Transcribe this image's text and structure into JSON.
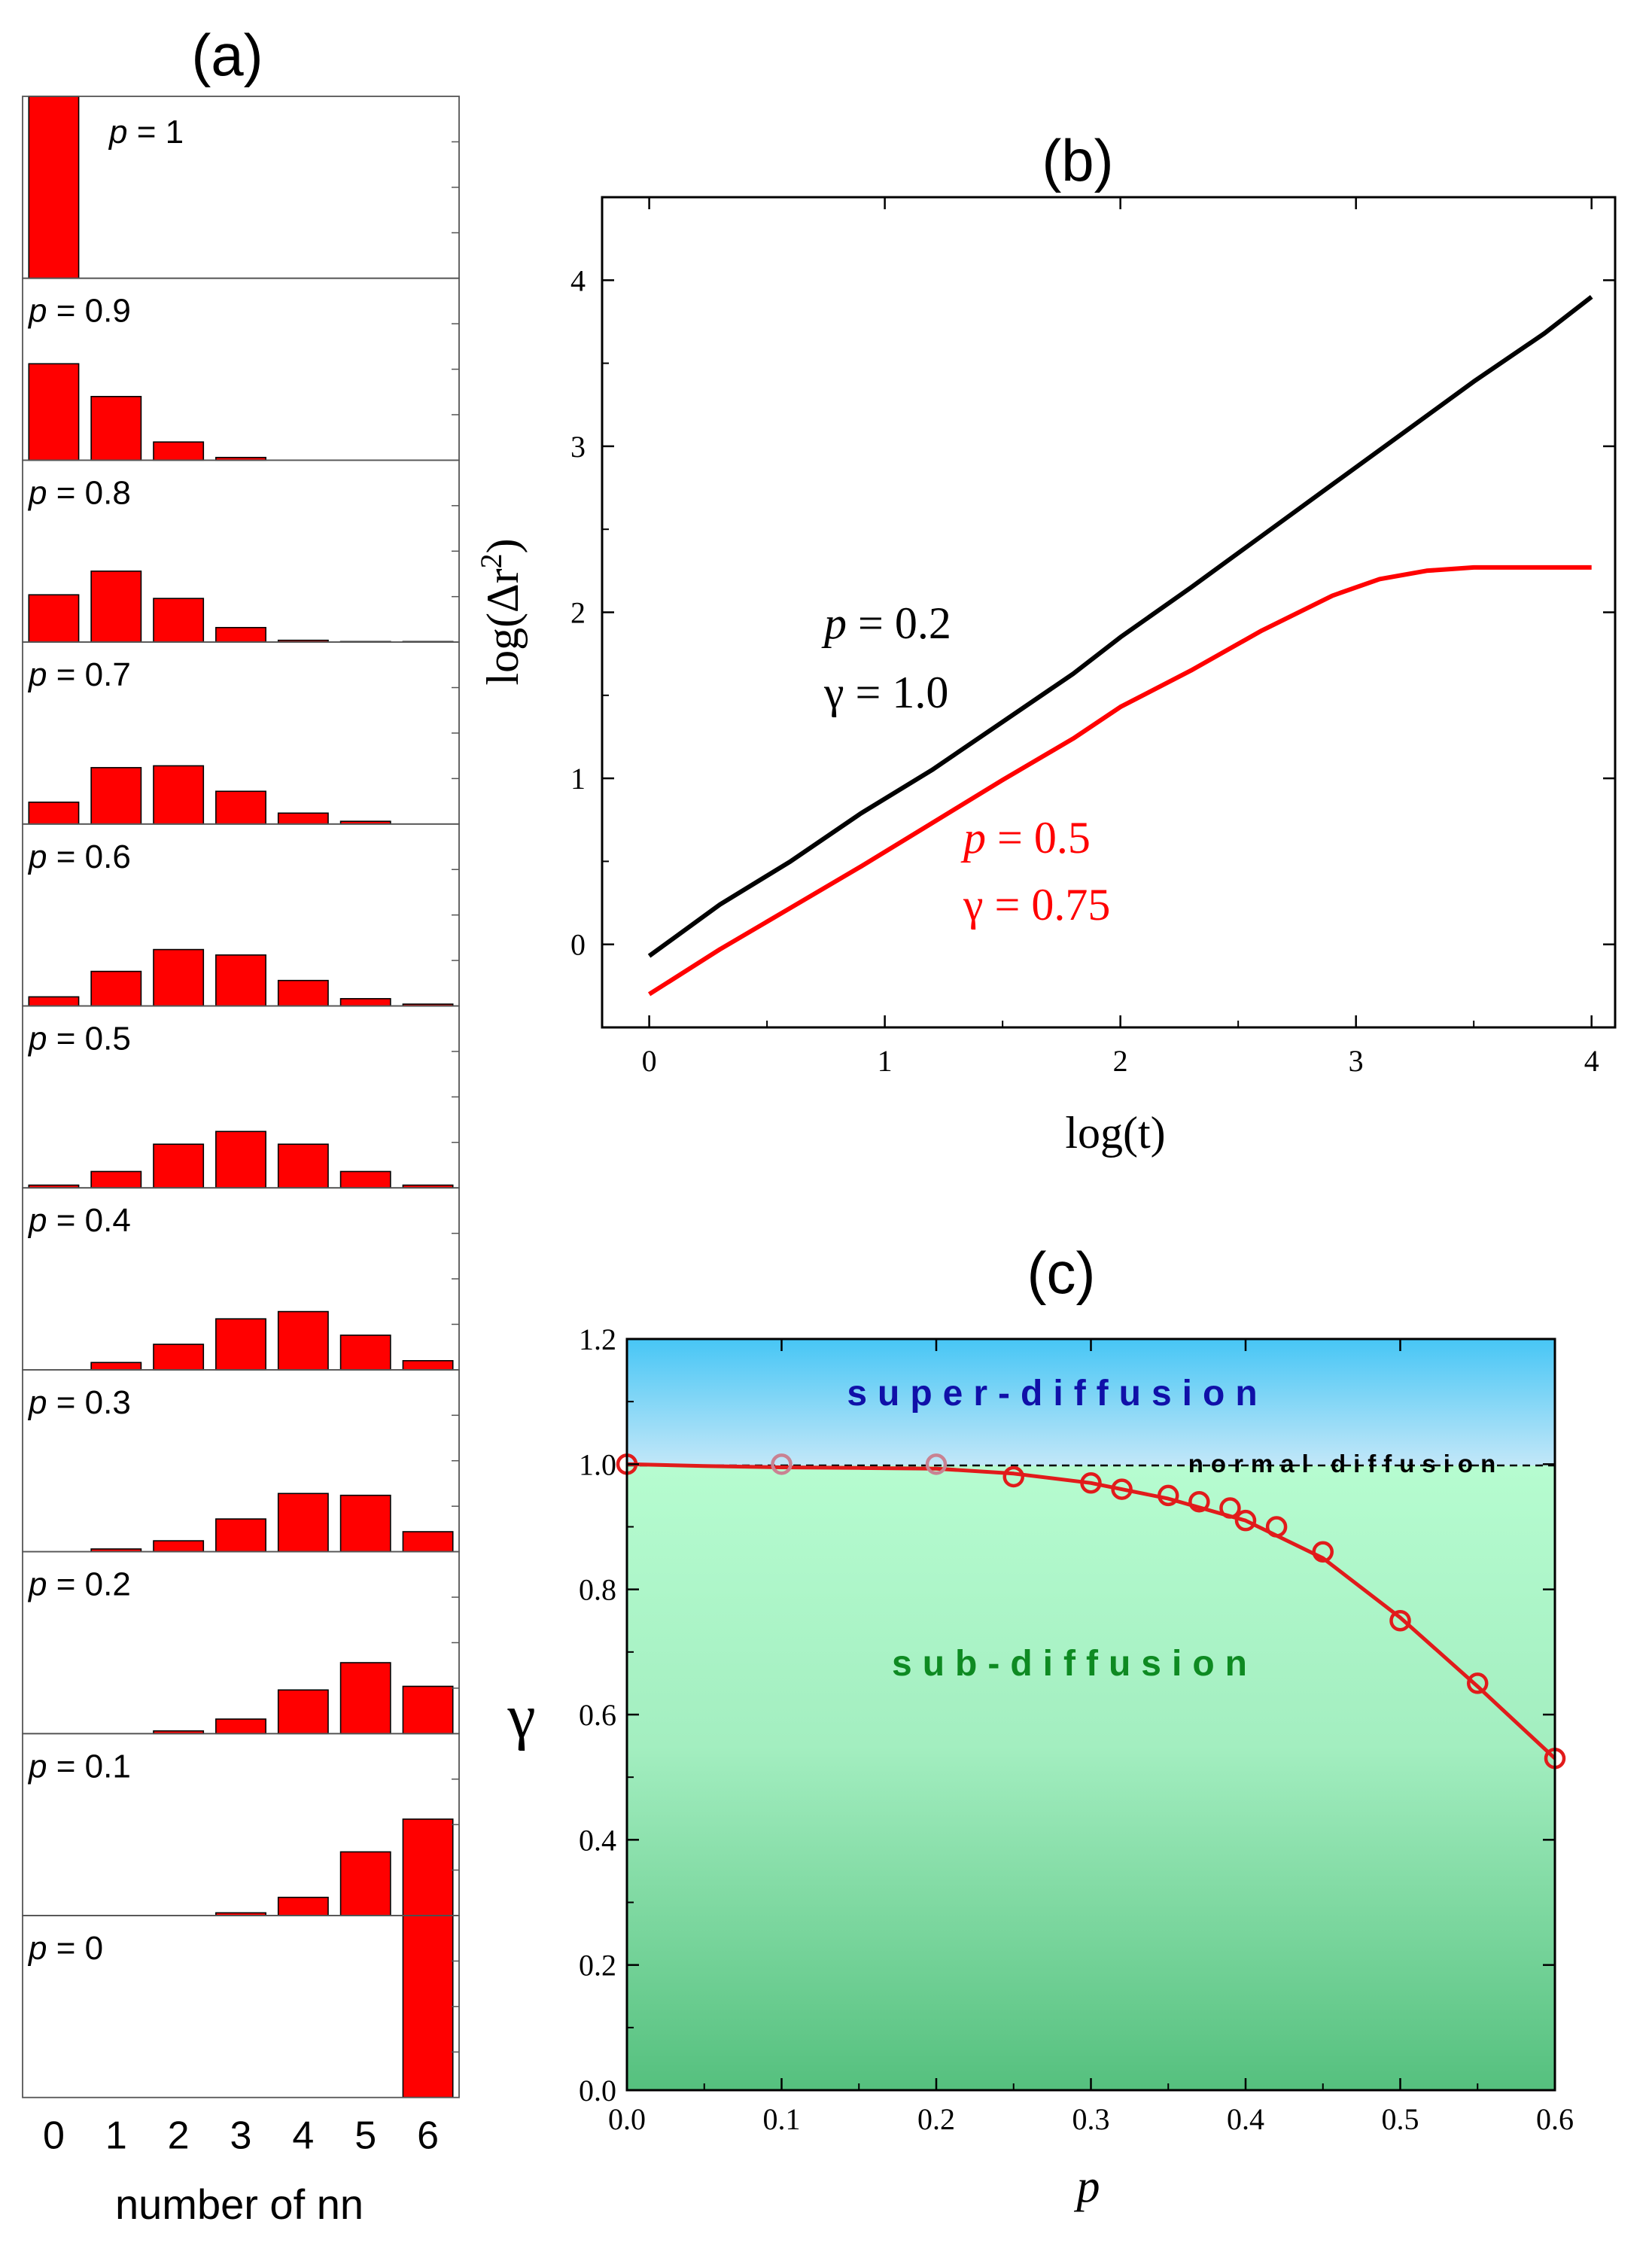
{
  "chart_data": [
    {
      "panel": "a",
      "type": "bar",
      "title": "(a)",
      "xlabel": "number of nn",
      "ylabel": "",
      "categories": [
        "0",
        "1",
        "2",
        "3",
        "4",
        "5",
        "6"
      ],
      "ylim": [
        0,
        1
      ],
      "series": [
        {
          "name": "p = 1",
          "label": "1",
          "values": [
            1.0,
            0,
            0,
            0,
            0,
            0,
            0
          ]
        },
        {
          "name": "p = 0.9",
          "label": "0.9",
          "values": [
            0.53,
            0.35,
            0.1,
            0.015,
            0,
            0,
            0
          ]
        },
        {
          "name": "p = 0.8",
          "label": "0.8",
          "values": [
            0.26,
            0.39,
            0.24,
            0.08,
            0.01,
            0.003,
            0.003
          ]
        },
        {
          "name": "p = 0.7",
          "label": "0.7",
          "values": [
            0.12,
            0.31,
            0.32,
            0.18,
            0.06,
            0.015,
            0
          ]
        },
        {
          "name": "p = 0.6",
          "label": "0.6",
          "values": [
            0.05,
            0.19,
            0.31,
            0.28,
            0.14,
            0.04,
            0.01
          ]
        },
        {
          "name": "p = 0.5",
          "label": "0.5",
          "values": [
            0.015,
            0.09,
            0.24,
            0.31,
            0.24,
            0.09,
            0.015
          ]
        },
        {
          "name": "p = 0.4",
          "label": "0.4",
          "values": [
            0,
            0.04,
            0.14,
            0.28,
            0.32,
            0.19,
            0.05
          ]
        },
        {
          "name": "p = 0.3",
          "label": "0.3",
          "values": [
            0,
            0.015,
            0.06,
            0.18,
            0.32,
            0.31,
            0.11
          ]
        },
        {
          "name": "p = 0.2",
          "label": "0.2",
          "values": [
            0,
            0,
            0.015,
            0.08,
            0.24,
            0.39,
            0.26
          ]
        },
        {
          "name": "p = 0.1",
          "label": "0.1",
          "values": [
            0,
            0,
            0,
            0.015,
            0.1,
            0.35,
            0.53
          ]
        },
        {
          "name": "p = 0",
          "label": "0",
          "values": [
            0,
            0,
            0,
            0,
            0,
            0,
            1.0
          ]
        }
      ]
    },
    {
      "panel": "b",
      "type": "line",
      "title": "(b)",
      "xlabel": "log(t)",
      "ylabel_main": "log(Δr",
      "ylabel_sup": "2",
      "ylabel_close": ")",
      "xlim": [
        -0.2,
        4.1
      ],
      "ylim": [
        -0.5,
        4.5
      ],
      "xticks": [
        "0",
        "1",
        "2",
        "3",
        "4"
      ],
      "yticks": [
        "0",
        "1",
        "2",
        "3",
        "4"
      ],
      "series": [
        {
          "name": "p = 0.2, γ = 1.0",
          "color": "#000000",
          "x": [
            0,
            0.3,
            0.6,
            0.9,
            1.2,
            1.5,
            1.8,
            2.0,
            2.3,
            2.6,
            2.9,
            3.2,
            3.5,
            3.8,
            4.0
          ],
          "y": [
            -0.07,
            0.24,
            0.5,
            0.79,
            1.05,
            1.34,
            1.63,
            1.85,
            2.15,
            2.46,
            2.77,
            3.08,
            3.39,
            3.68,
            3.9
          ]
        },
        {
          "name": "p = 0.5, γ = 0.75",
          "color": "#ff0000",
          "x": [
            0,
            0.3,
            0.6,
            0.9,
            1.2,
            1.5,
            1.8,
            2.0,
            2.3,
            2.6,
            2.9,
            3.1,
            3.3,
            3.5,
            3.8,
            4.0
          ],
          "y": [
            -0.3,
            -0.03,
            0.22,
            0.47,
            0.73,
            0.99,
            1.24,
            1.43,
            1.65,
            1.89,
            2.1,
            2.2,
            2.25,
            2.27,
            2.27,
            2.27
          ]
        }
      ],
      "annotations": [
        {
          "p_symbol": "p",
          "p_text": " = 0.2",
          "g_text": "γ = 1.0",
          "color": "#000000"
        },
        {
          "p_symbol": "p",
          "p_text": " = 0.5",
          "g_text": "γ = 0.75",
          "color": "#ff0000"
        }
      ]
    },
    {
      "panel": "c",
      "type": "scatter",
      "title": "(c)",
      "xlabel": "p",
      "ylabel": "γ",
      "xlim": [
        0.0,
        0.6
      ],
      "ylim": [
        0.0,
        1.2
      ],
      "xticks": [
        "0.0",
        "0.1",
        "0.2",
        "0.3",
        "0.4",
        "0.5",
        "0.6"
      ],
      "yticks": [
        "0.0",
        "0.2",
        "0.4",
        "0.6",
        "0.8",
        "1.0",
        "1.2"
      ],
      "reference_line": 1.0,
      "regions": {
        "super": "super-diffusion",
        "normal": "normal diffusion",
        "sub": "sub-diffusion"
      },
      "points": {
        "x": [
          0.0,
          0.1,
          0.2,
          0.25,
          0.3,
          0.32,
          0.35,
          0.37,
          0.39,
          0.4,
          0.42,
          0.45,
          0.5,
          0.55,
          0.6
        ],
        "y": [
          1.0,
          1.0,
          1.0,
          0.98,
          0.97,
          0.96,
          0.95,
          0.94,
          0.93,
          0.91,
          0.9,
          0.86,
          0.75,
          0.65,
          0.53
        ]
      },
      "fit_curve": {
        "x": [
          0.0,
          0.05,
          0.1,
          0.15,
          0.2,
          0.25,
          0.3,
          0.35,
          0.4,
          0.45,
          0.5,
          0.55,
          0.6
        ],
        "y": [
          1.0,
          0.997,
          0.995,
          0.994,
          0.993,
          0.985,
          0.97,
          0.945,
          0.91,
          0.85,
          0.755,
          0.645,
          0.53
        ]
      }
    }
  ]
}
